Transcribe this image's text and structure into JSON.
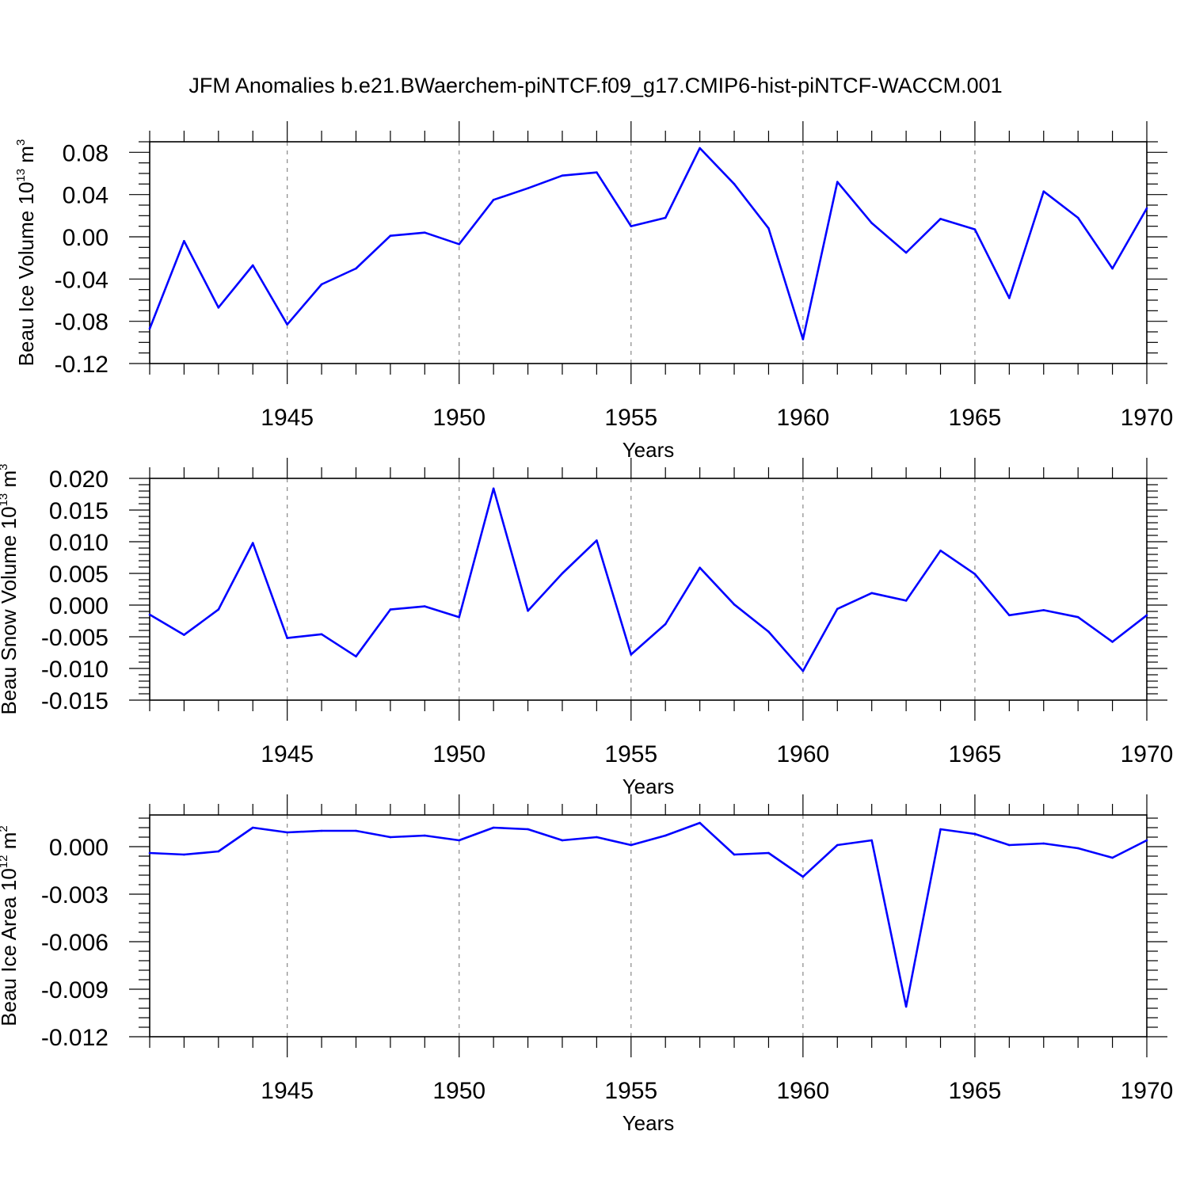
{
  "title": "JFM Anomalies b.e21.BWaerchem-piNTCF.f09_g17.CMIP6-hist-piNTCF-WACCM.001",
  "colors": {
    "line": "#0000ff",
    "axis": "#000000",
    "grid": "#888888"
  },
  "chart_data": [
    {
      "type": "line",
      "ylabel_prefix": "Beau Ice Volume 10",
      "ylabel_exp": "13",
      "ylabel_unit": " m",
      "ylabel_unit_exp": "3",
      "xlabel": "Years",
      "xlim": [
        1941,
        1970
      ],
      "ylim": [
        -0.12,
        0.09
      ],
      "x_ticks": [
        1945,
        1950,
        1955,
        1960,
        1965,
        1970
      ],
      "y_ticks": [
        -0.12,
        -0.08,
        -0.04,
        0.0,
        0.04,
        0.08
      ],
      "y_tick_labels": [
        "-0.12",
        "-0.08",
        "-0.04",
        "0.00",
        "0.04",
        "0.08"
      ],
      "x_minor_step": 1,
      "y_minor_step": 0.01,
      "grid": "vertical dashed at major x ticks",
      "x": [
        1941,
        1942,
        1943,
        1944,
        1945,
        1946,
        1947,
        1948,
        1949,
        1950,
        1951,
        1952,
        1953,
        1954,
        1955,
        1956,
        1957,
        1958,
        1959,
        1960,
        1961,
        1962,
        1963,
        1964,
        1965,
        1966,
        1967,
        1968,
        1969,
        1970
      ],
      "values": [
        -0.087,
        -0.004,
        -0.067,
        -0.027,
        -0.083,
        -0.045,
        -0.03,
        0.001,
        0.004,
        -0.007,
        0.035,
        0.046,
        0.058,
        0.061,
        0.01,
        0.018,
        0.084,
        0.05,
        0.008,
        -0.097,
        0.052,
        0.013,
        -0.015,
        0.017,
        0.007,
        -0.058,
        0.043,
        0.018,
        -0.03,
        0.027
      ]
    },
    {
      "type": "line",
      "ylabel_prefix": "Beau Snow Volume 10",
      "ylabel_exp": "13",
      "ylabel_unit": " m",
      "ylabel_unit_exp": "3",
      "xlabel": "Years",
      "xlim": [
        1941,
        1970
      ],
      "ylim": [
        -0.015,
        0.02
      ],
      "x_ticks": [
        1945,
        1950,
        1955,
        1960,
        1965,
        1970
      ],
      "y_ticks": [
        -0.015,
        -0.01,
        -0.005,
        0.0,
        0.005,
        0.01,
        0.015,
        0.02
      ],
      "y_tick_labels": [
        "-0.015",
        "-0.010",
        "-0.005",
        "0.000",
        "0.005",
        "0.010",
        "0.015",
        "0.020"
      ],
      "x_minor_step": 1,
      "y_minor_step": 0.001,
      "grid": "vertical dashed at major x ticks",
      "x": [
        1941,
        1942,
        1943,
        1944,
        1945,
        1946,
        1947,
        1948,
        1949,
        1950,
        1951,
        1952,
        1953,
        1954,
        1955,
        1956,
        1957,
        1958,
        1959,
        1960,
        1961,
        1962,
        1963,
        1964,
        1965,
        1966,
        1967,
        1968,
        1969,
        1970
      ],
      "values": [
        -0.0015,
        -0.0047,
        -0.0007,
        0.0098,
        -0.0052,
        -0.0046,
        -0.0081,
        -0.0007,
        -0.0002,
        -0.0019,
        0.0184,
        -0.0009,
        0.005,
        0.0102,
        -0.0078,
        -0.003,
        0.0059,
        0.0001,
        -0.0042,
        -0.0104,
        -0.0006,
        0.0019,
        0.0007,
        0.0086,
        0.0049,
        -0.0016,
        -0.0008,
        -0.0019,
        -0.0058,
        -0.0016
      ]
    },
    {
      "type": "line",
      "ylabel_prefix": "Beau Ice Area 10",
      "ylabel_exp": "12",
      "ylabel_unit": " m",
      "ylabel_unit_exp": "2",
      "xlabel": "Years",
      "xlim": [
        1941,
        1970
      ],
      "ylim": [
        -0.012,
        0.002
      ],
      "x_ticks": [
        1945,
        1950,
        1955,
        1960,
        1965,
        1970
      ],
      "y_ticks": [
        -0.012,
        -0.009,
        -0.006,
        -0.003,
        0.0
      ],
      "y_tick_labels": [
        "-0.012",
        "-0.009",
        "-0.006",
        "-0.003",
        "0.000"
      ],
      "x_minor_step": 1,
      "y_minor_step": 0.0006,
      "grid": "vertical dashed at major x ticks",
      "x": [
        1941,
        1942,
        1943,
        1944,
        1945,
        1946,
        1947,
        1948,
        1949,
        1950,
        1951,
        1952,
        1953,
        1954,
        1955,
        1956,
        1957,
        1958,
        1959,
        1960,
        1961,
        1962,
        1963,
        1964,
        1965,
        1966,
        1967,
        1968,
        1969,
        1970
      ],
      "values": [
        -0.0004,
        -0.0005,
        -0.0003,
        0.0012,
        0.0009,
        0.001,
        0.001,
        0.0006,
        0.0007,
        0.0004,
        0.0012,
        0.0011,
        0.0004,
        0.0006,
        0.0001,
        0.0007,
        0.0015,
        -0.0005,
        -0.0004,
        -0.0019,
        0.0001,
        0.0004,
        -0.0101,
        0.0011,
        0.0008,
        0.0001,
        0.0002,
        -0.0001,
        -0.0007,
        0.0004
      ]
    }
  ]
}
